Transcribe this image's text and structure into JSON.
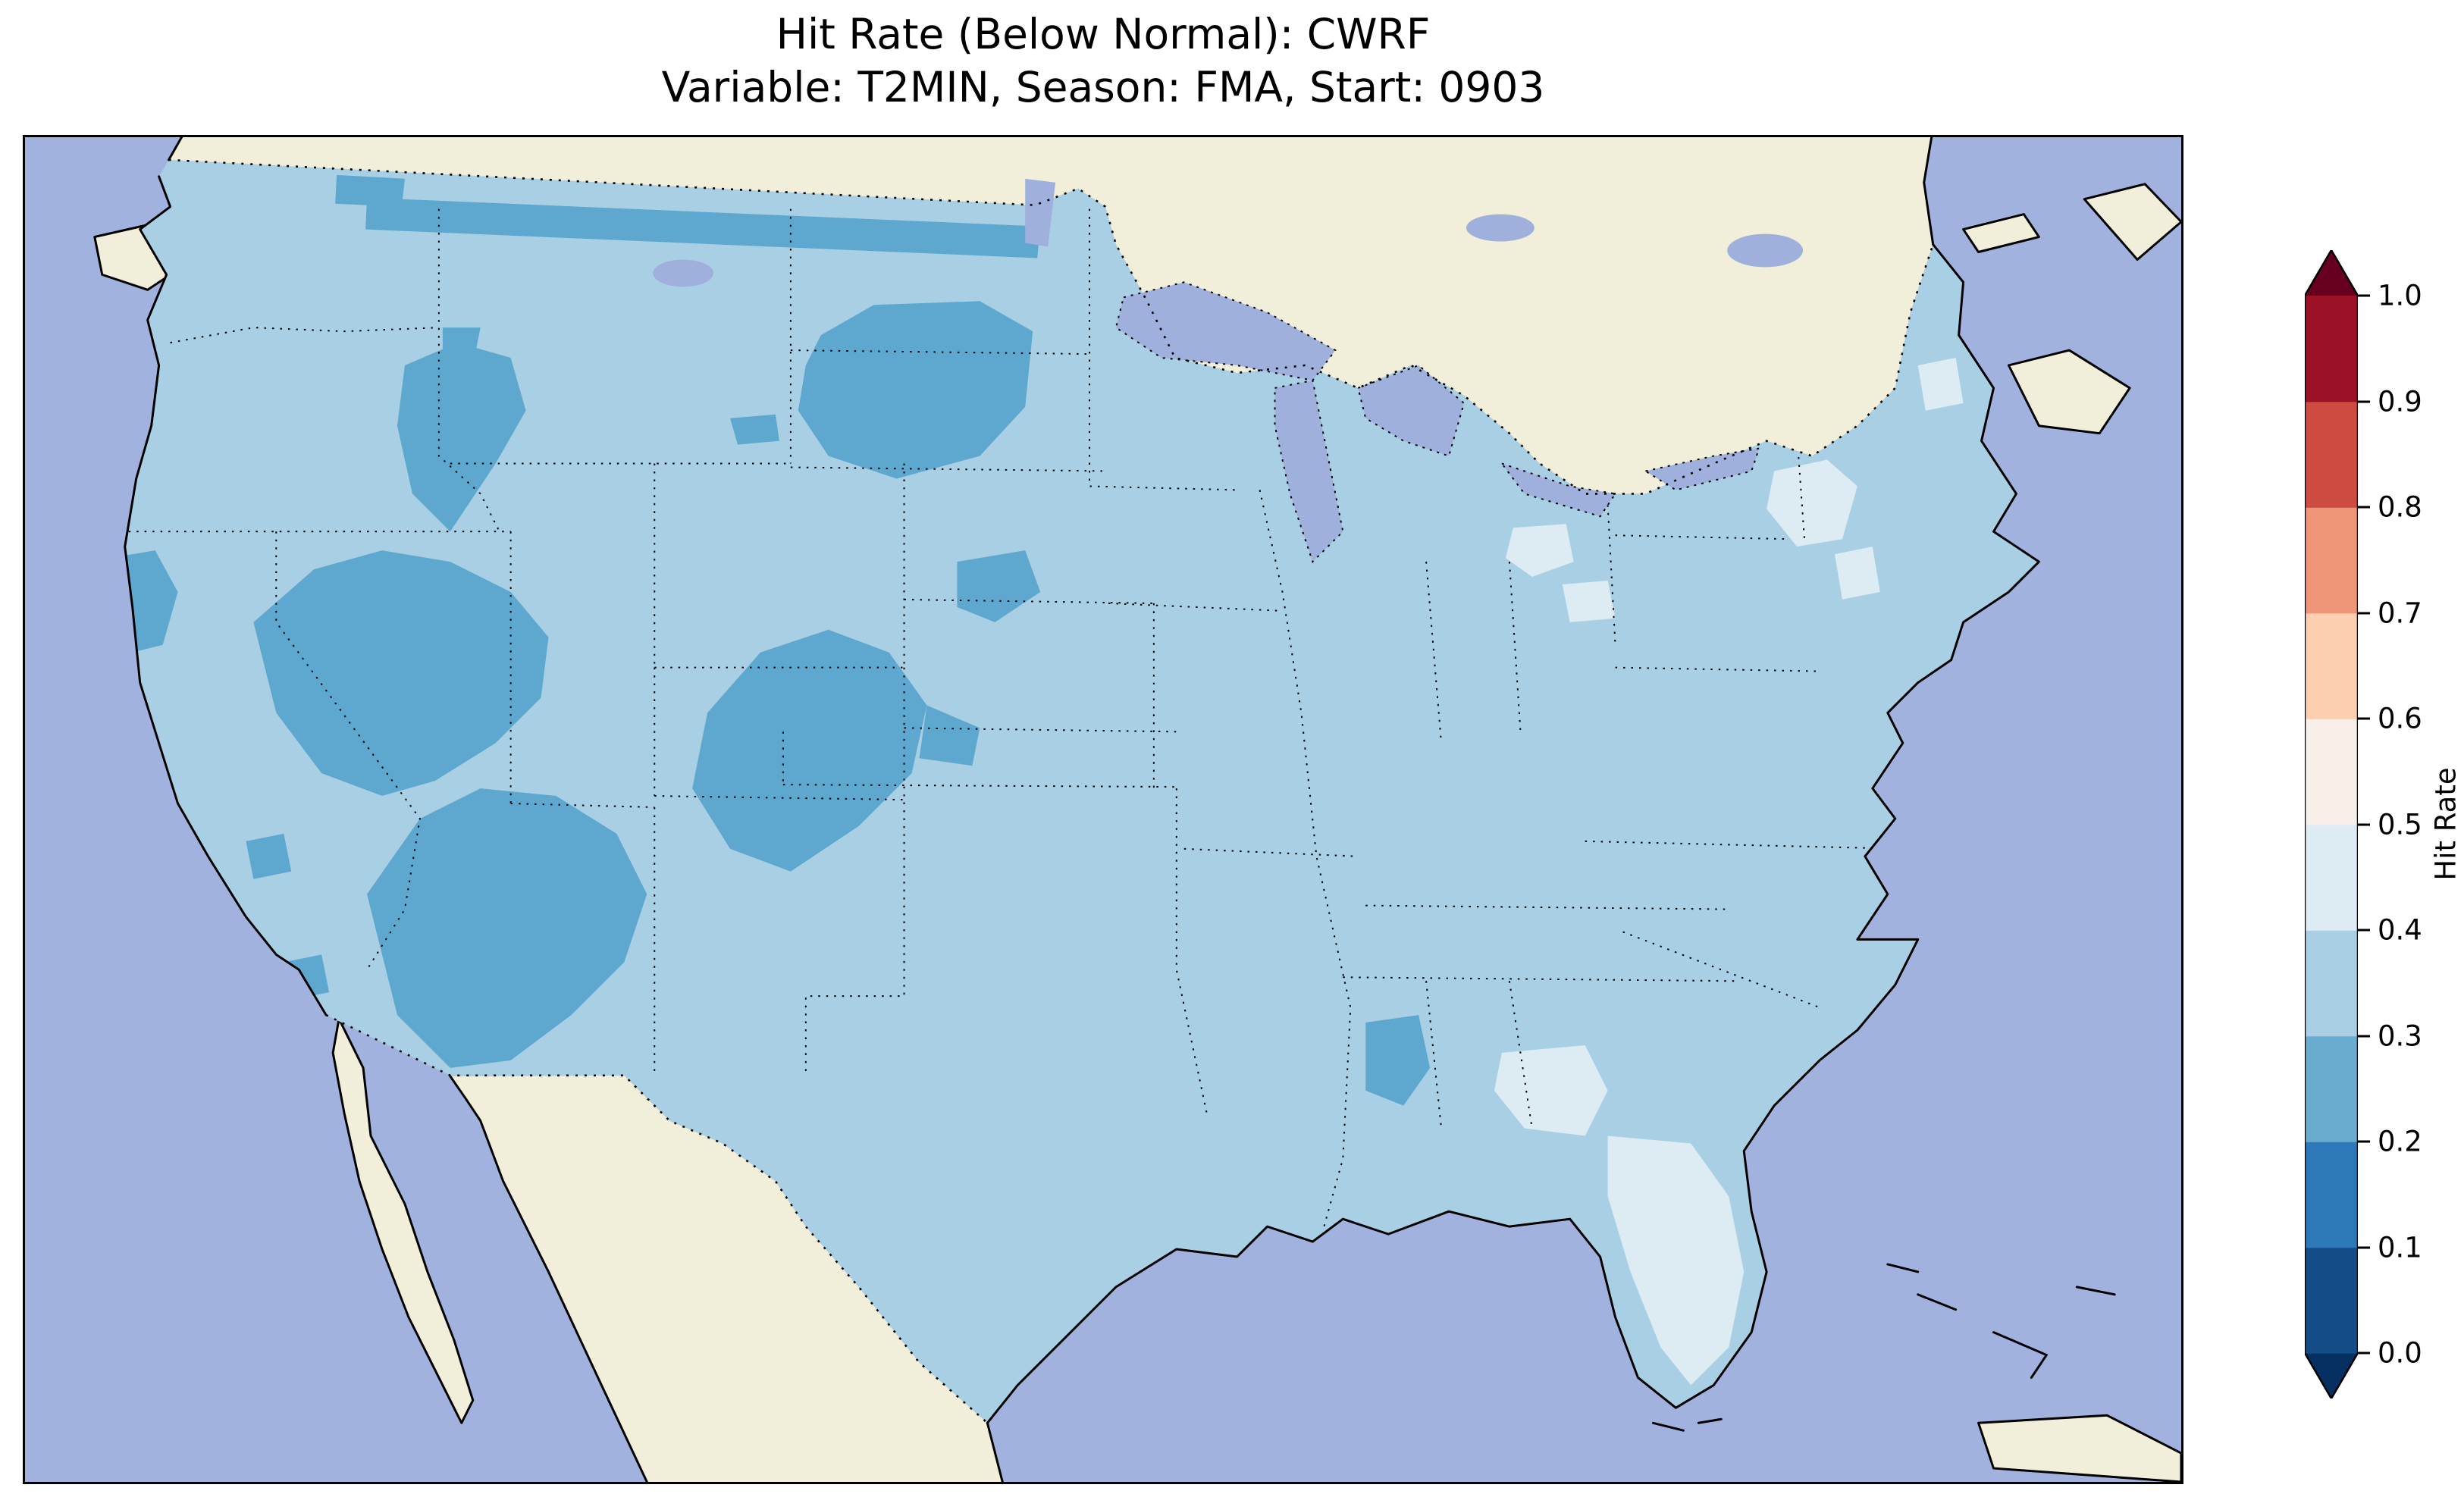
{
  "title": {
    "line1": "Hit Rate (Below Normal): CWRF",
    "line2": "Variable: T2MIN, Season: FMA, Start: 0903"
  },
  "colorbar": {
    "label": "Hit Rate",
    "ticks": [
      "1.0",
      "0.9",
      "0.8",
      "0.7",
      "0.6",
      "0.5",
      "0.4",
      "0.3",
      "0.2",
      "0.1",
      "0.0"
    ],
    "segments_bottom_to_top": [
      "#134c87",
      "#2d79b8",
      "#6aacd0",
      "#a9cfe4",
      "#ddebf3",
      "#f9efe9",
      "#fbcfb0",
      "#ee9677",
      "#ce4b41",
      "#9d1127"
    ],
    "extend_under_color": "#053061",
    "extend_over_color": "#67001f"
  },
  "colors": {
    "ocean": "#a2b2df",
    "land": "#f1eeda",
    "lake": "#9fb0dd",
    "base": "#a9cfe4",
    "bin23": "#5ea8cf",
    "bin45": "#ddebf3",
    "bin56": "#f7f5f1",
    "coastline": "#000000",
    "boundary": "#000000"
  },
  "chart_data": {
    "type": "heatmap",
    "title": "Hit Rate (Below Normal): CWRF",
    "subtitle": "Variable: T2MIN, Season: FMA, Start: 0903",
    "model": "CWRF",
    "variable": "T2MIN",
    "season": "FMA",
    "start_date": "0903",
    "category": "Below Normal",
    "map_region": "Contiguous United States with surrounding Canada, Mexico, Gulf of Mexico, Atlantic and Pacific oceans",
    "projection_style": "lat/lon gridded forecast-verification map, pixelated grid cells",
    "colorbar": {
      "label": "Hit Rate",
      "range": [
        0.0,
        1.0
      ],
      "tick_step": 0.1,
      "orientation": "vertical-right",
      "extended_both_ends": true,
      "colormap": "RdBu_r discrete with 0.1-wide bins (dark blue = 0.0, dark red = 1.0)"
    },
    "values_summary": [
      {
        "region": "Most of the contiguous United States",
        "hit_rate_bin": [
          0.3,
          0.4
        ]
      },
      {
        "region": "Northern Montana border strip and western North Dakota",
        "hit_rate_bin": [
          0.2,
          0.3
        ]
      },
      {
        "region": "Central Idaho / western Montana",
        "hit_rate_bin": [
          0.2,
          0.3
        ]
      },
      {
        "region": "Nevada / Utah Great Basin blob",
        "hit_rate_bin": [
          0.2,
          0.3
        ]
      },
      {
        "region": "Arizona / New Mexico / southern Colorado blob",
        "hit_rate_bin": [
          0.2,
          0.3
        ]
      },
      {
        "region": "Eastern Colorado / western Nebraska blob",
        "hit_rate_bin": [
          0.2,
          0.3
        ]
      },
      {
        "region": "Coastal southern Oregon / northern California",
        "hit_rate_bin": [
          0.2,
          0.3
        ]
      },
      {
        "region": "Central Mississippi patch",
        "hit_rate_bin": [
          0.2,
          0.3
        ]
      },
      {
        "region": "Florida peninsula and southern Georgia",
        "hit_rate_bin": [
          0.4,
          0.5
        ]
      },
      {
        "region": "Lower Michigan / Lake Erie vicinity patches",
        "hit_rate_bin": [
          0.4,
          0.5
        ]
      },
      {
        "region": "Northern New England / upstate New York patches",
        "hit_rate_bin": [
          0.4,
          0.5
        ]
      },
      {
        "region": "Isolated south Florida cells",
        "hit_rate_bin": [
          0.5,
          0.6
        ]
      }
    ],
    "legend_position": "right"
  }
}
